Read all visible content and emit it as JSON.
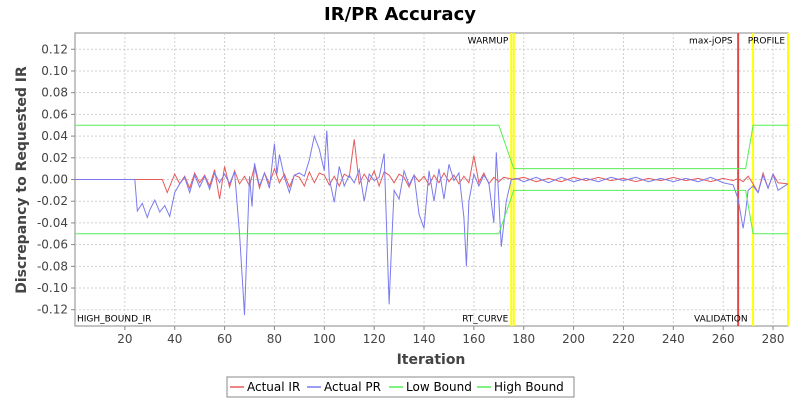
{
  "chart_data": {
    "type": "line",
    "title": "IR/PR Accuracy",
    "xlabel": "Iteration",
    "ylabel": "Discrepancy to Requested IR",
    "xlim": [
      0,
      286
    ],
    "ylim": [
      -0.135,
      0.135
    ],
    "xticks": [
      20,
      40,
      60,
      80,
      100,
      120,
      140,
      160,
      180,
      200,
      220,
      240,
      260,
      280
    ],
    "yticks": [
      -0.12,
      -0.1,
      -0.08,
      -0.06,
      -0.04,
      -0.02,
      0.0,
      0.02,
      0.04,
      0.06,
      0.08,
      0.1,
      0.12
    ],
    "ytick_labels": [
      "-0.12",
      "-0.10",
      "-0.08",
      "-0.06",
      "-0.04",
      "-0.02",
      "0.00",
      "0.02",
      "0.04",
      "0.06",
      "0.08",
      "0.10",
      "0.12"
    ],
    "grid": true,
    "legend_position": "bottom",
    "annotations": [
      {
        "text": "WARMUP",
        "x": 175,
        "y": 0.128,
        "anchor": "end"
      },
      {
        "text": "max-jOPS",
        "x": 265,
        "y": 0.128,
        "anchor": "end"
      },
      {
        "text": "PROFILE",
        "x": 286,
        "y": 0.128,
        "anchor": "end"
      },
      {
        "text": "HIGH_BOUND_IR",
        "x": 0,
        "y": -0.128,
        "anchor": "start"
      },
      {
        "text": "RT_CURVE",
        "x": 175,
        "y": -0.128,
        "anchor": "end"
      },
      {
        "text": "VALIDATION",
        "x": 271,
        "y": -0.128,
        "anchor": "end"
      }
    ],
    "vertical_markers": [
      {
        "x": 175,
        "color": "#ffff00"
      },
      {
        "x": 176,
        "color": "#ffff00"
      },
      {
        "x": 266,
        "color": "#e04848"
      },
      {
        "x": 272,
        "color": "#ffff00"
      },
      {
        "x": 286,
        "color": "#ffff00"
      }
    ],
    "series": [
      {
        "name": "Actual IR",
        "color": "#e85a5a",
        "x": [
          0,
          24,
          30,
          35,
          37,
          40,
          42,
          44,
          46,
          48,
          50,
          52,
          54,
          56,
          58,
          60,
          62,
          64,
          66,
          68,
          70,
          72,
          74,
          76,
          78,
          80,
          82,
          84,
          86,
          88,
          90,
          92,
          94,
          96,
          98,
          100,
          102,
          104,
          106,
          108,
          110,
          112,
          114,
          116,
          118,
          120,
          122,
          124,
          126,
          128,
          130,
          132,
          134,
          136,
          138,
          140,
          142,
          144,
          146,
          148,
          150,
          152,
          154,
          156,
          158,
          160,
          162,
          164,
          166,
          168,
          170,
          172,
          174,
          176,
          180,
          185,
          190,
          195,
          200,
          205,
          210,
          215,
          220,
          225,
          230,
          235,
          240,
          245,
          250,
          255,
          260,
          264,
          266,
          268,
          270,
          272,
          274,
          276,
          278,
          280,
          282,
          286
        ],
        "values": [
          0,
          0,
          0,
          0,
          -0.012,
          0.005,
          -0.004,
          0.003,
          -0.008,
          0.006,
          -0.003,
          0.004,
          -0.006,
          0.009,
          -0.018,
          0.012,
          -0.007,
          0.008,
          -0.004,
          0.003,
          -0.006,
          0.012,
          -0.008,
          0.006,
          -0.004,
          0.01,
          -0.003,
          0.005,
          -0.007,
          0.004,
          0.002,
          -0.006,
          0.007,
          -0.003,
          0.006,
          0.004,
          -0.005,
          0.003,
          -0.006,
          0.005,
          0.002,
          0.037,
          -0.004,
          0.005,
          -0.002,
          0.008,
          -0.006,
          0.007,
          0.004,
          -0.003,
          0.005,
          0.002,
          -0.007,
          0.004,
          -0.002,
          0.003,
          -0.005,
          0.004,
          -0.003,
          0.006,
          -0.002,
          0.004,
          -0.004,
          0.003,
          -0.003,
          0.022,
          -0.003,
          0.006,
          -0.004,
          0.002,
          -0.002,
          0.002,
          0.001,
          0,
          0.002,
          -0.002,
          0.001,
          -0.002,
          0.002,
          -0.001,
          0.002,
          -0.001,
          0.001,
          -0.002,
          0.001,
          -0.001,
          0.002,
          -0.001,
          0.001,
          -0.002,
          0.001,
          -0.001,
          0.001,
          -0.002,
          0.003,
          -0.004,
          -0.012,
          0.006,
          -0.008,
          0.005,
          -0.003,
          -0.004
        ]
      },
      {
        "name": "Actual PR",
        "color": "#7a7aee",
        "x": [
          0,
          24,
          25,
          27,
          29,
          30,
          32,
          34,
          36,
          38,
          40,
          42,
          44,
          46,
          48,
          50,
          52,
          54,
          56,
          58,
          60,
          62,
          64,
          66,
          68,
          70,
          71,
          72,
          74,
          76,
          78,
          80,
          81,
          82,
          84,
          86,
          88,
          90,
          92,
          94,
          96,
          98,
          100,
          101,
          102,
          104,
          106,
          108,
          110,
          112,
          114,
          116,
          118,
          120,
          122,
          124,
          126,
          127,
          128,
          130,
          132,
          134,
          136,
          138,
          140,
          142,
          144,
          146,
          148,
          150,
          152,
          154,
          156,
          157,
          158,
          160,
          162,
          164,
          166,
          168,
          169,
          171,
          173,
          175,
          177,
          180,
          185,
          190,
          195,
          200,
          205,
          210,
          215,
          220,
          225,
          230,
          235,
          240,
          245,
          250,
          255,
          260,
          264,
          266,
          268,
          269,
          270,
          272,
          274,
          276,
          278,
          280,
          282,
          286
        ],
        "values": [
          0,
          0,
          -0.029,
          -0.022,
          -0.035,
          -0.028,
          -0.019,
          -0.03,
          -0.024,
          -0.034,
          -0.012,
          -0.004,
          0.002,
          -0.012,
          0.004,
          -0.007,
          0.003,
          -0.009,
          0.006,
          -0.003,
          0.005,
          -0.004,
          0.007,
          -0.05,
          -0.125,
          0.003,
          -0.025,
          0.015,
          -0.006,
          0.006,
          -0.008,
          0.033,
          0.005,
          0.023,
          0.002,
          -0.012,
          0.004,
          0.006,
          0.003,
          0.018,
          0.04,
          0.028,
          0.008,
          0.045,
          0.001,
          -0.021,
          0.012,
          -0.006,
          0.004,
          -0.003,
          0.009,
          -0.02,
          0.005,
          -0.001,
          0.002,
          0.024,
          -0.115,
          -0.06,
          -0.01,
          -0.018,
          0.008,
          -0.005,
          0.004,
          -0.032,
          -0.045,
          0.008,
          -0.02,
          0.01,
          -0.018,
          0.014,
          -0.001,
          0.006,
          -0.035,
          -0.08,
          -0.02,
          0.005,
          -0.006,
          0.004,
          -0.003,
          -0.04,
          0.025,
          -0.062,
          -0.02,
          0,
          0.001,
          -0.002,
          0.002,
          -0.003,
          0.002,
          -0.002,
          0.001,
          -0.002,
          0.002,
          -0.001,
          0.002,
          -0.002,
          0.001,
          -0.002,
          0.001,
          -0.002,
          0.002,
          -0.003,
          -0.005,
          -0.018,
          -0.045,
          -0.03,
          -0.01,
          -0.006,
          -0.012,
          0.004,
          -0.008,
          0.005,
          -0.01,
          -0.004
        ]
      },
      {
        "name": "Low Bound",
        "color": "#55ee55",
        "x": [
          0,
          170,
          176,
          266,
          269,
          272,
          286
        ],
        "values": [
          -0.05,
          -0.05,
          -0.01,
          -0.01,
          -0.01,
          -0.05,
          -0.05
        ]
      },
      {
        "name": "High Bound",
        "color": "#55ee55",
        "x": [
          0,
          170,
          176,
          266,
          269,
          272,
          286
        ],
        "values": [
          0.05,
          0.05,
          0.01,
          0.01,
          0.01,
          0.05,
          0.05
        ]
      }
    ]
  }
}
